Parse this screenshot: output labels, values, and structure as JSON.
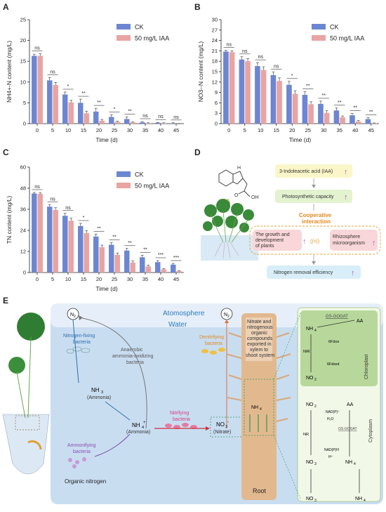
{
  "chart_data": [
    {
      "panel": "A",
      "type": "bar",
      "ylabel": "NH4+-N content (mg/L)",
      "xlabel": "Time (d)",
      "categories": [
        "0",
        "5",
        "10",
        "15",
        "20",
        "25",
        "30",
        "35",
        "40",
        "45"
      ],
      "ylim": [
        0,
        25
      ],
      "yticks": [
        0,
        5,
        10,
        15,
        20,
        25
      ],
      "legend": "top-right",
      "series": [
        {
          "name": "CK",
          "color": "#6d86d1",
          "values": [
            16.3,
            10.4,
            7.0,
            5.0,
            2.9,
            1.6,
            1.1,
            0.3,
            0.2,
            0.1
          ],
          "errors": [
            0.4,
            0.7,
            0.6,
            0.9,
            0.8,
            0.5,
            0.5,
            0.2,
            0.1,
            0.1
          ]
        },
        {
          "name": "50 mg/L IAA",
          "color": "#e8a4a2",
          "values": [
            16.3,
            9.3,
            5.1,
            2.5,
            0.7,
            0.4,
            0.3,
            0.1,
            0.1,
            0.0
          ],
          "errors": [
            0.5,
            0.6,
            0.5,
            0.5,
            0.3,
            0.2,
            0.1,
            0.1,
            0.1,
            0.0
          ]
        }
      ],
      "significance": [
        "ns",
        "ns",
        "*",
        "**",
        "**",
        "*",
        "**",
        "ns",
        "ns",
        "ns"
      ]
    },
    {
      "panel": "B",
      "type": "bar",
      "ylabel": "NO3--N content (mg/L)",
      "xlabel": "Time (d)",
      "categories": [
        "0",
        "5",
        "10",
        "15",
        "20",
        "25",
        "30",
        "35",
        "40",
        "45"
      ],
      "ylim": [
        0,
        30
      ],
      "yticks": [
        0,
        3,
        6,
        9,
        12,
        15,
        18,
        21,
        24,
        27,
        30
      ],
      "legend": "top-right",
      "series": [
        {
          "name": "CK",
          "color": "#6d86d1",
          "values": [
            20.8,
            18.5,
            16.6,
            14.0,
            11.2,
            8.3,
            5.7,
            3.8,
            2.4,
            1.3
          ],
          "errors": [
            0.4,
            0.8,
            1.0,
            0.9,
            1.0,
            0.9,
            0.8,
            0.7,
            0.5,
            0.4
          ]
        },
        {
          "name": "50 mg/L IAA",
          "color": "#e8a4a2",
          "values": [
            20.6,
            18.0,
            15.5,
            12.3,
            8.6,
            5.6,
            3.1,
            1.8,
            0.6,
            0.1
          ],
          "errors": [
            0.4,
            0.8,
            0.9,
            0.9,
            0.9,
            0.7,
            0.6,
            0.4,
            0.3,
            0.1
          ]
        }
      ],
      "significance": [
        "ns",
        "ns",
        "ns",
        "ns",
        "*",
        "**",
        "**",
        "**",
        "**",
        "**"
      ]
    },
    {
      "panel": "C",
      "type": "bar",
      "ylabel": "TN content (mg/L)",
      "xlabel": "Time (d)",
      "categories": [
        "0",
        "5",
        "10",
        "15",
        "20",
        "25",
        "30",
        "35",
        "40",
        "45"
      ],
      "ylim": [
        0,
        60
      ],
      "yticks": [
        0,
        12,
        24,
        36,
        48,
        60
      ],
      "legend": "top-right",
      "series": [
        {
          "name": "CK",
          "color": "#6d86d1",
          "values": [
            45.0,
            37.5,
            32.3,
            26.5,
            20.5,
            15.8,
            12.5,
            8.7,
            5.9,
            4.5
          ],
          "errors": [
            0.6,
            1.2,
            1.4,
            1.5,
            1.4,
            1.2,
            1.2,
            1.1,
            0.9,
            0.7
          ]
        },
        {
          "name": "50 mg/L IAA",
          "color": "#e8a4a2",
          "values": [
            44.8,
            35.6,
            29.5,
            22.5,
            14.4,
            10.1,
            5.7,
            3.5,
            1.8,
            0.8
          ],
          "errors": [
            0.6,
            1.3,
            1.4,
            1.4,
            1.2,
            1.0,
            0.9,
            0.7,
            0.5,
            0.3
          ]
        }
      ],
      "significance": [
        "ns",
        "ns",
        "ns",
        "*",
        "**",
        "**",
        "**",
        "**",
        "***",
        "***"
      ]
    }
  ],
  "panel_letters": {
    "a": "A",
    "b": "B",
    "c": "C",
    "d": "D",
    "e": "E"
  },
  "panel_d": {
    "molecule_label": "IAA",
    "box1": "3-Indoleacetic acid (IAA)",
    "box2": "Photosynthetic capacity",
    "coop_line1": "Cooperative",
    "coop_line2": "interaction",
    "box3_line1": "The growth and",
    "box3_line2": "development",
    "box3_line3": "of plants",
    "box4_line1": "Rhizosphere",
    "box4_line2": "microorganism",
    "box5": "Nitrogen removal efficiency"
  },
  "panel_e": {
    "atmosphere": "Atomosphere",
    "water": "Water",
    "n2_left": "N",
    "n2_right": "N",
    "sub2": "2",
    "nitrogen_fixing_1": "Nitrogen-fixing",
    "nitrogen_fixing_2": "bacteria",
    "anammox_1": "Anaerobic",
    "anammox_2": "ammonia-oxidizing",
    "anammox_3": "bacteria",
    "denitrifying_1": "Denitrifying",
    "denitrifying_2": "bacteria",
    "nh3": "NH",
    "nh3_sub": "3",
    "ammonia": "(Ammonia)",
    "nh4": "NH",
    "nh4_sub": "4",
    "plus": "+",
    "ammonia2": "(Ammonia)",
    "nitrifying_1": "Nitrifying",
    "nitrifying_2": "bacteria",
    "no3": "NO",
    "no3_sub": "3",
    "minus": "-",
    "nitrate": "(Nitrate)",
    "ammonifying_1": "Ammonifying",
    "ammonifying_2": "bacteria",
    "organic_nitrogen": "Organic nitrogen",
    "root": "Root",
    "xylem_1": "Nitrate and",
    "xylem_2": "nitrogenous",
    "xylem_3": "organic",
    "xylem_4": "compounds",
    "xylem_5": "exported in",
    "xylem_6": "xylem to",
    "xylem_7": "shoot system",
    "gs_gogat_top": "GS-GOGAT",
    "gs_gogat_bottom": "GS-GOGAT",
    "aa_top": "AA",
    "aa_bottom": "AA",
    "fdox": "6Fdox",
    "fdred": "6Fdred",
    "nir": "NIR",
    "nr": "NR",
    "nadp": "NAD(P)⁺",
    "nadph": "NAD(P)H",
    "h2o": "H₂O",
    "hplus": "H⁺",
    "chloroplast": "Chloroplast",
    "cytoplasm": "Cytoplasm",
    "no2": "NO",
    "no2_sub": "2"
  }
}
